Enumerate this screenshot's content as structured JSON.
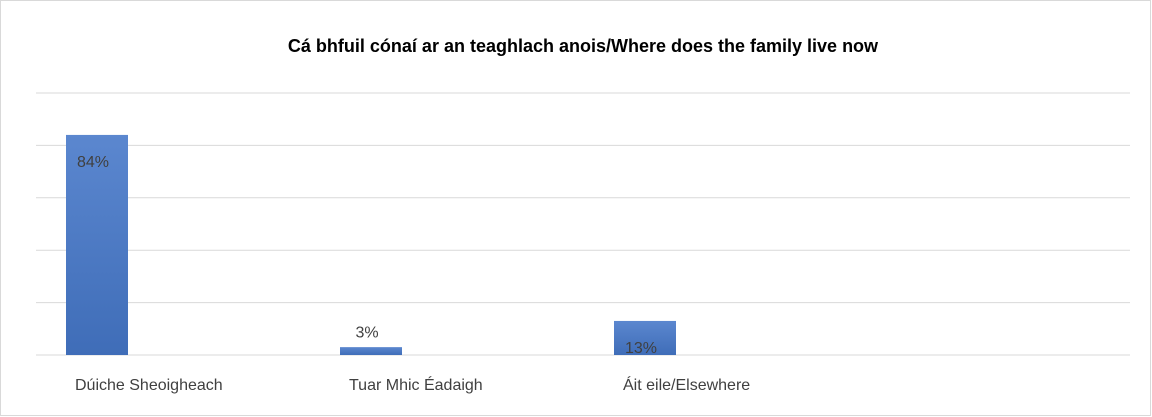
{
  "chart_data": {
    "type": "bar",
    "title": "Cá bhfuil cónaí ar an teaghlach anois/Where does the family live now",
    "categories": [
      "Dúiche Sheoigheach",
      "Tuar Mhic Éadaigh",
      "Áit eile/Elsewhere"
    ],
    "values": [
      84,
      3,
      13
    ],
    "value_labels": [
      "84%",
      "3%",
      "13%"
    ],
    "color": "#4472c4",
    "ylim": [
      0,
      100
    ],
    "yticks": [
      0,
      20,
      40,
      60,
      80,
      100
    ],
    "grid": true
  }
}
